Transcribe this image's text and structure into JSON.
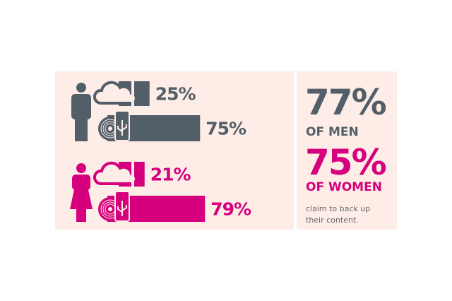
{
  "chart_data": {
    "type": "bar",
    "orientation": "horizontal",
    "unit": "%",
    "groups": [
      {
        "group": "men",
        "color": "#535f68",
        "bars": [
          {
            "icon": "cloud-icon",
            "value": 25,
            "label": "25%"
          },
          {
            "icon": "disc-usb-icon",
            "value": 75,
            "label": "75%"
          }
        ]
      },
      {
        "group": "women",
        "color": "#d6007e",
        "bars": [
          {
            "icon": "cloud-icon",
            "value": 21,
            "label": "21%"
          },
          {
            "icon": "disc-usb-icon",
            "value": 79,
            "label": "79%"
          }
        ]
      }
    ]
  },
  "summary": {
    "men_pct": "77%",
    "men_label": "OF MEN",
    "women_pct": "75%",
    "women_label": "OF WOMEN",
    "note_line1": "claim to back up",
    "note_line2": "their content."
  },
  "colors": {
    "background": "#fdede6",
    "men": "#535f68",
    "women": "#d6007e"
  }
}
